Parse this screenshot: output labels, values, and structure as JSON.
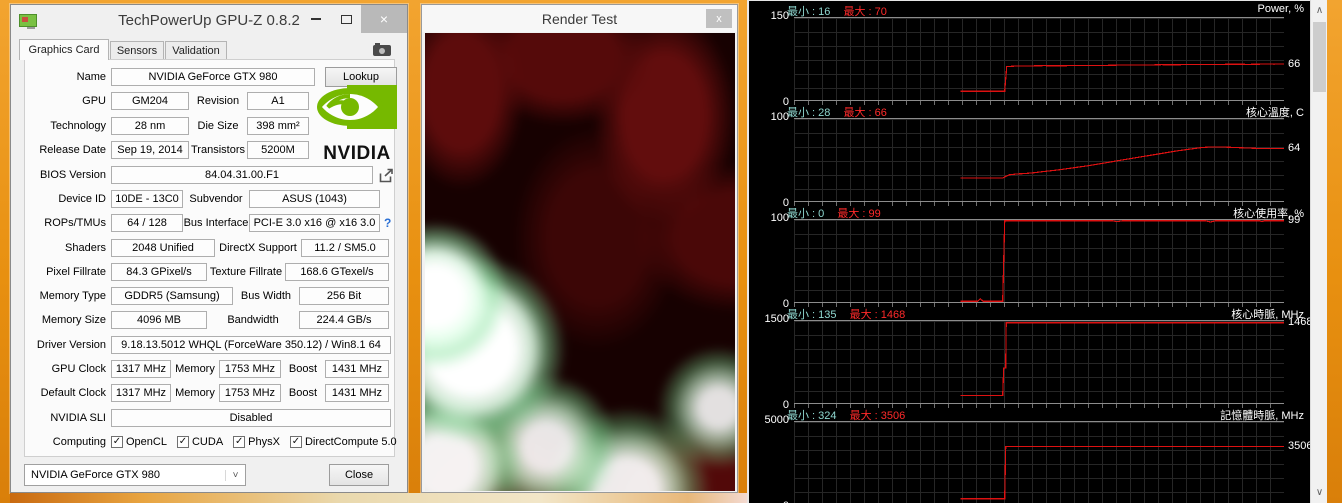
{
  "gpuz": {
    "window_title": "TechPowerUp GPU-Z 0.8.2",
    "icons": {
      "close_glyph": "×",
      "check": "✓",
      "dropdown_arrow": "˅"
    },
    "tabs": [
      {
        "label": "Graphics Card",
        "active": true
      },
      {
        "label": "Sensors",
        "active": false
      },
      {
        "label": "Validation",
        "active": false
      }
    ],
    "fields": {
      "name_label": "Name",
      "name_value": "NVIDIA GeForce GTX 980",
      "lookup_button": "Lookup",
      "gpu_label": "GPU",
      "gpu_value": "GM204",
      "revision_label": "Revision",
      "revision_value": "A1",
      "technology_label": "Technology",
      "technology_value": "28 nm",
      "die_size_label": "Die Size",
      "die_size_value": "398 mm²",
      "release_date_label": "Release Date",
      "release_date_value": "Sep 19, 2014",
      "transistors_label": "Transistors",
      "transistors_value": "5200M",
      "bios_label": "BIOS Version",
      "bios_value": "84.04.31.00.F1",
      "device_id_label": "Device ID",
      "device_id_value": "10DE - 13C0",
      "subvendor_label": "Subvendor",
      "subvendor_value": "ASUS (1043)",
      "rops_label": "ROPs/TMUs",
      "rops_value": "64 / 128",
      "bus_interface_label": "Bus Interface",
      "bus_interface_value": "PCI-E 3.0 x16 @ x16 3.0",
      "bus_help": "?",
      "shaders_label": "Shaders",
      "shaders_value": "2048 Unified",
      "directx_label": "DirectX Support",
      "directx_value": "11.2 / SM5.0",
      "pixel_fillrate_label": "Pixel Fillrate",
      "pixel_fillrate_value": "84.3 GPixel/s",
      "texture_fillrate_label": "Texture Fillrate",
      "texture_fillrate_value": "168.6 GTexel/s",
      "memory_type_label": "Memory Type",
      "memory_type_value": "GDDR5 (Samsung)",
      "bus_width_label": "Bus Width",
      "bus_width_value": "256 Bit",
      "memory_size_label": "Memory Size",
      "memory_size_value": "4096 MB",
      "bandwidth_label": "Bandwidth",
      "bandwidth_value": "224.4 GB/s",
      "driver_label": "Driver Version",
      "driver_value": "9.18.13.5012 WHQL (ForceWare 350.12) / Win8.1 64",
      "gpu_clock_label": "GPU Clock",
      "gpu_clock_value": "1317 MHz",
      "gpu_clock_memory_label": "Memory",
      "gpu_clock_memory_value": "1753 MHz",
      "gpu_clock_boost_label": "Boost",
      "gpu_clock_boost_value": "1431 MHz",
      "default_clock_label": "Default Clock",
      "default_clock_value": "1317 MHz",
      "default_clock_memory_label": "Memory",
      "default_clock_memory_value": "1753 MHz",
      "default_clock_boost_label": "Boost",
      "default_clock_boost_value": "1431 MHz",
      "sli_label": "NVIDIA SLI",
      "sli_value": "Disabled",
      "computing_label": "Computing"
    },
    "computing_options": [
      {
        "label": "OpenCL",
        "checked": true
      },
      {
        "label": "CUDA",
        "checked": true
      },
      {
        "label": "PhysX",
        "checked": true
      },
      {
        "label": "DirectCompute 5.0",
        "checked": true
      }
    ],
    "footer": {
      "device_select": "NVIDIA GeForce GTX 980",
      "close_button": "Close"
    },
    "brand": {
      "nvidia_text": "NVIDIA"
    }
  },
  "render_test": {
    "title": "Render Test",
    "close_glyph": "x"
  },
  "sensors_scrollbar": {
    "up_glyph": "∧",
    "down_glyph": "∨"
  },
  "chart_data": [
    {
      "type": "line",
      "title": "Power, %",
      "min_label": "最小 : 16",
      "max_label": "最大 : 70",
      "ylim": [
        0,
        150
      ],
      "ytop": "150",
      "ybottom": "0",
      "value": "66",
      "line_color": "#dd1111",
      "points": [
        [
          34,
          16
        ],
        [
          42.6,
          16
        ],
        [
          43,
          16
        ],
        [
          43.4,
          61
        ],
        [
          45,
          62
        ],
        [
          48,
          62.3
        ],
        [
          51,
          62.8
        ],
        [
          54,
          62.5
        ],
        [
          57,
          63
        ],
        [
          60,
          63.4
        ],
        [
          63,
          63.2
        ],
        [
          66,
          63.8
        ],
        [
          69,
          64.2
        ],
        [
          72,
          64
        ],
        [
          75,
          64.6
        ],
        [
          78,
          64.4
        ],
        [
          81,
          65
        ],
        [
          84,
          64.8
        ],
        [
          87,
          65.2
        ],
        [
          90,
          65.4
        ],
        [
          93,
          65.2
        ],
        [
          96,
          65.8
        ],
        [
          98,
          65.6
        ],
        [
          100,
          66
        ]
      ]
    },
    {
      "type": "line",
      "title": "核心溫度, C",
      "min_label": "最小 : 28",
      "max_label": "最大 : 66",
      "ylim": [
        0,
        100
      ],
      "ytop": "100",
      "ybottom": "0",
      "value": "64",
      "line_color": "#dd1111",
      "points": [
        [
          34,
          28
        ],
        [
          42.6,
          28
        ],
        [
          43.2,
          30
        ],
        [
          44,
          32
        ],
        [
          45.5,
          33
        ],
        [
          47,
          33.5
        ],
        [
          49,
          34.5
        ],
        [
          51,
          36
        ],
        [
          54,
          38
        ],
        [
          57,
          40.5
        ],
        [
          60,
          43
        ],
        [
          63,
          46
        ],
        [
          66,
          49
        ],
        [
          69,
          52
        ],
        [
          72,
          55
        ],
        [
          75,
          58
        ],
        [
          78,
          61
        ],
        [
          81,
          63.5
        ],
        [
          83,
          65
        ],
        [
          85,
          66
        ],
        [
          87,
          66
        ],
        [
          89,
          65.5
        ],
        [
          91,
          65
        ],
        [
          93,
          64.5
        ],
        [
          95,
          64
        ],
        [
          100,
          64
        ]
      ]
    },
    {
      "type": "line",
      "title": "核心使用率, %",
      "min_label": "最小 : 0",
      "max_label": "最大 : 99",
      "ylim": [
        0,
        100
      ],
      "ytop": "100",
      "ybottom": "0",
      "value": "99",
      "line_color": "#dd1111",
      "points": [
        [
          34,
          1
        ],
        [
          37.5,
          1
        ],
        [
          38,
          4
        ],
        [
          38.6,
          1
        ],
        [
          42.6,
          1
        ],
        [
          43,
          99
        ],
        [
          65,
          99
        ],
        [
          66,
          98
        ],
        [
          67,
          99
        ],
        [
          84,
          99
        ],
        [
          85,
          97.5
        ],
        [
          86,
          99
        ],
        [
          95,
          99
        ],
        [
          95.5,
          98
        ],
        [
          96,
          99
        ],
        [
          100,
          99
        ]
      ]
    },
    {
      "type": "line",
      "title": "核心時脈, MHz",
      "min_label": "最小 : 135",
      "max_label": "最大 : 1468",
      "ylim": [
        0,
        1500
      ],
      "ytop": "1500",
      "ybottom": "0",
      "value": "1468",
      "line_color": "#dd1111",
      "points": [
        [
          34,
          135
        ],
        [
          42.6,
          135
        ],
        [
          42.8,
          640
        ],
        [
          43.2,
          640
        ],
        [
          43.3,
          1468
        ],
        [
          100,
          1468
        ]
      ]
    },
    {
      "type": "line",
      "title": "記憶體時脈, MHz",
      "min_label": "最小 : 324",
      "max_label": "最大 : 3506",
      "ylim": [
        0,
        5000
      ],
      "ytop": "5000",
      "ybottom": "0",
      "value": "3506",
      "line_color": "#dd1111",
      "points": [
        [
          34,
          324
        ],
        [
          43,
          324
        ],
        [
          43.2,
          3506
        ],
        [
          100,
          3506
        ]
      ]
    }
  ]
}
